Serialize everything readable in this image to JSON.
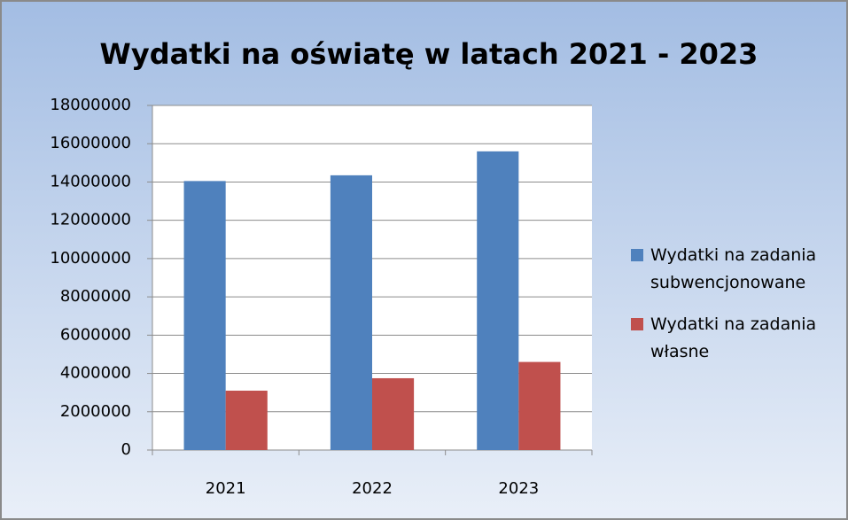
{
  "chart_data": {
    "type": "bar",
    "title": "Wydatki na oświatę w latach 2021 - 2023",
    "categories": [
      "2021",
      "2022",
      "2023"
    ],
    "series": [
      {
        "name": "Wydatki na zadania subwencjonowane",
        "color": "#4f81bd",
        "values": [
          14050000,
          14350000,
          15600000
        ]
      },
      {
        "name": "Wydatki na zadania własne",
        "color": "#c0504d",
        "values": [
          3100000,
          3750000,
          4600000
        ]
      }
    ],
    "ylim": [
      0,
      18000000
    ],
    "yticks": [
      0,
      2000000,
      4000000,
      6000000,
      8000000,
      10000000,
      12000000,
      14000000,
      16000000,
      18000000
    ],
    "grid": true,
    "legend": "right"
  }
}
